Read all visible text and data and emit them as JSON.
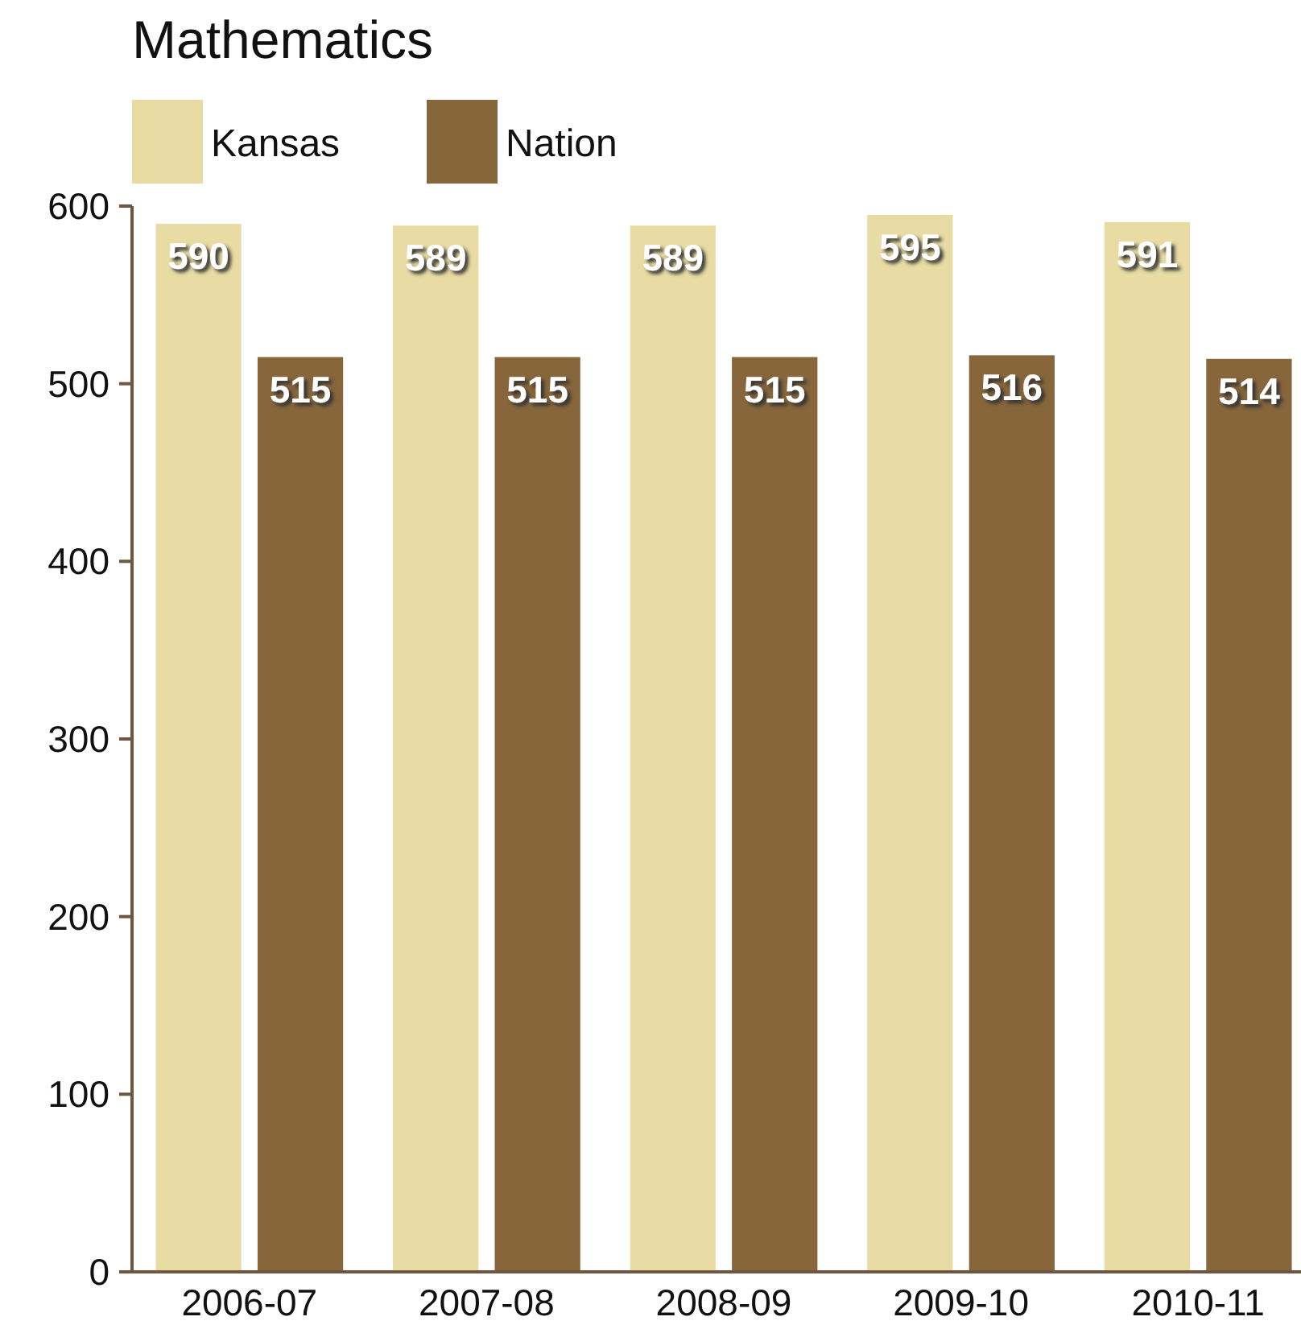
{
  "chart_data": {
    "type": "bar",
    "title": "Mathematics",
    "categories": [
      "2006-07",
      "2007-08",
      "2008-09",
      "2009-10",
      "2010-11"
    ],
    "series": [
      {
        "name": "Kansas",
        "color": "#e8dca4",
        "values": [
          590,
          589,
          589,
          595,
          591
        ]
      },
      {
        "name": "Nation",
        "color": "#87663c",
        "values": [
          515,
          515,
          515,
          516,
          514
        ]
      }
    ],
    "ylim": [
      0,
      600
    ],
    "yticks": [
      0,
      100,
      200,
      300,
      400,
      500,
      600
    ],
    "grid": false,
    "legend": "top left",
    "data_labels": true
  }
}
